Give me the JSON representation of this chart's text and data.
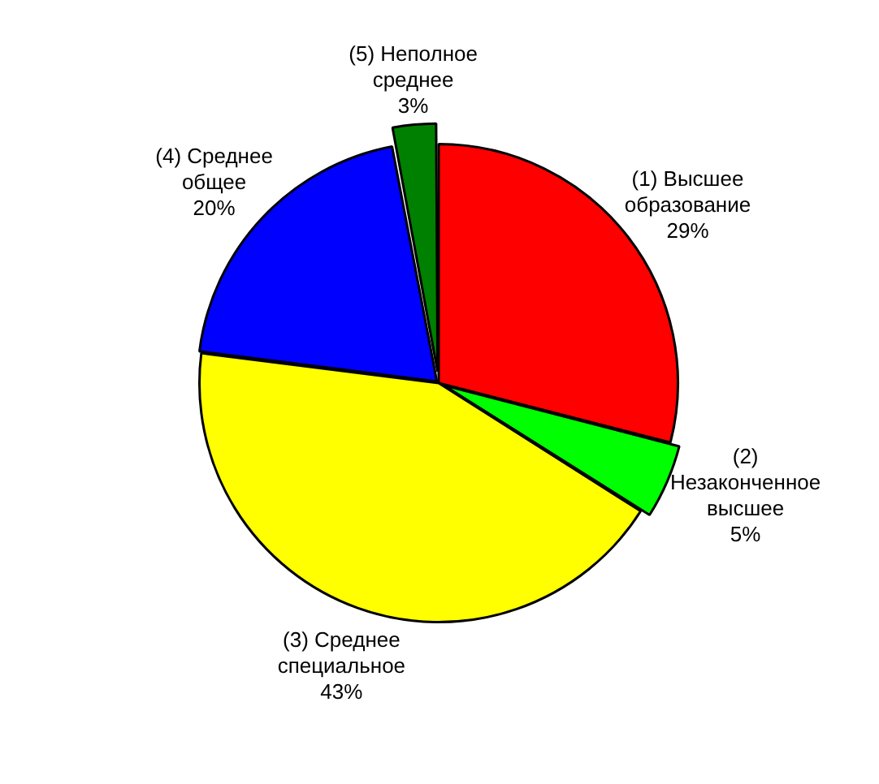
{
  "chart_data": {
    "type": "pie",
    "categories": [
      "(1) Высшее образование",
      "(2) Незаконченное высшее",
      "(3) Среднее специальное",
      "(4) Среднее общее",
      "(5) Неполное среднее"
    ],
    "values": [
      29,
      5,
      43,
      20,
      3
    ],
    "colors": [
      "#ff0000",
      "#00ff00",
      "#ffff00",
      "#0000ff",
      "#008000"
    ],
    "value_labels": [
      "29%",
      "5%",
      "43%",
      "20%",
      "3%"
    ],
    "legend": false
  }
}
